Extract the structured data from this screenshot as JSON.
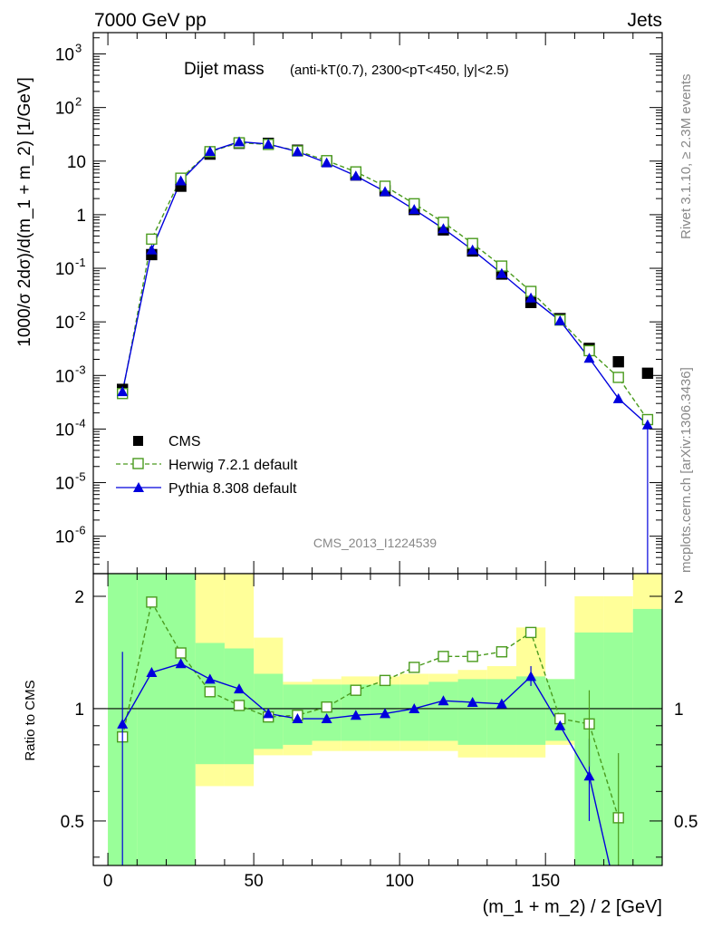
{
  "header": {
    "left": "7000 GeV pp",
    "right": "Jets"
  },
  "side_text": {
    "rivet": "Rivet 3.1.10, ≥ 2.3M events",
    "mcplots": "mcplots.cern.ch [arXiv:1306.3436]"
  },
  "chart_data": {
    "type": "scatter",
    "title_main": "Dijet mass",
    "title_sub": "(anti-kT(0.7), 2300<pT<450, |y|<2.5)",
    "watermark": "CMS_2013_I1224539",
    "xlabel": "(m_1 + m_2) / 2 [GeV]",
    "ylabel_top": "1000/σ 2dσ)/d(m_1 + m_2) [1/GeV]",
    "ylabel_bottom": "Ratio to CMS",
    "xlim": [
      -5,
      190
    ],
    "ylim_top": [
      2e-07,
      2500
    ],
    "ylim_bottom": [
      0.38,
      2.3
    ],
    "yscale_top": "log",
    "yscale_bottom": "log",
    "x_ticks": [
      0,
      50,
      100,
      150
    ],
    "y_ticks_top": [
      "10^-6",
      "10^-5",
      "10^-4",
      "10^-3",
      "10^-2",
      "10^-1",
      "1",
      "10",
      "10^2",
      "10^3"
    ],
    "y_ticks_bottom": [
      "0.5",
      "1",
      "2"
    ],
    "legend_position": "bottom-left",
    "x": [
      5,
      15,
      25,
      35,
      45,
      55,
      65,
      75,
      85,
      95,
      105,
      115,
      125,
      135,
      145,
      155,
      165,
      175,
      185
    ],
    "series": [
      {
        "name": "CMS",
        "color": "#000000",
        "marker": "square-filled",
        "values": [
          0.00055,
          0.18,
          3.4,
          13.5,
          21.5,
          21.5,
          16.0,
          10.0,
          5.5,
          2.8,
          1.25,
          0.52,
          0.21,
          0.078,
          0.023,
          0.0115,
          0.0032,
          0.0018,
          0.0011
        ]
      },
      {
        "name": "Herwig 7.2.1 default",
        "color": "#4a9b1e",
        "marker": "square-open",
        "line": "dashed",
        "values": [
          0.00046,
          0.35,
          4.8,
          15.0,
          22.0,
          20.5,
          15.5,
          10.2,
          6.3,
          3.4,
          1.6,
          0.72,
          0.29,
          0.11,
          0.037,
          0.0108,
          0.0029,
          0.00092,
          0.00015
        ]
      },
      {
        "name": "Pythia 8.308 default",
        "color": "#0000dd",
        "marker": "triangle-filled",
        "line": "solid",
        "values": [
          0.0005,
          0.22,
          4.3,
          15.2,
          23.0,
          20.8,
          15.0,
          9.3,
          5.3,
          2.7,
          1.25,
          0.55,
          0.22,
          0.08,
          0.028,
          0.0105,
          0.0021,
          0.00037,
          0.00012
        ]
      }
    ],
    "ratio": {
      "herwig": [
        0.84,
        1.93,
        1.41,
        1.11,
        1.02,
        0.95,
        0.96,
        1.01,
        1.12,
        1.19,
        1.29,
        1.38,
        1.38,
        1.42,
        1.6,
        0.94,
        0.91,
        0.51
      ],
      "pythia": [
        0.91,
        1.25,
        1.32,
        1.2,
        1.13,
        0.97,
        0.94,
        0.94,
        0.96,
        0.97,
        1.0,
        1.05,
        1.04,
        1.03,
        1.22,
        0.9,
        0.66
      ],
      "stat_band": [
        [
          0,
          10,
          0.3,
          3.0
        ],
        [
          10,
          20,
          0.3,
          3.0
        ],
        [
          20,
          30,
          0.3,
          3.0
        ],
        [
          30,
          40,
          0.71,
          1.5
        ],
        [
          40,
          50,
          0.71,
          1.45
        ],
        [
          50,
          60,
          0.78,
          1.24
        ],
        [
          60,
          70,
          0.8,
          1.16
        ],
        [
          70,
          80,
          0.82,
          1.16
        ],
        [
          80,
          90,
          0.82,
          1.16
        ],
        [
          90,
          100,
          0.82,
          1.16
        ],
        [
          100,
          110,
          0.82,
          1.16
        ],
        [
          110,
          120,
          0.82,
          1.18
        ],
        [
          120,
          130,
          0.8,
          1.2
        ],
        [
          130,
          140,
          0.8,
          1.2
        ],
        [
          140,
          150,
          0.8,
          1.22
        ],
        [
          150,
          160,
          0.82,
          1.2
        ],
        [
          160,
          170,
          0.35,
          1.6
        ],
        [
          170,
          180,
          0.35,
          1.6
        ],
        [
          180,
          190,
          0.35,
          1.85
        ]
      ],
      "syst_band": [
        [
          0,
          10,
          0.3,
          3.0
        ],
        [
          10,
          20,
          0.59,
          3.0
        ],
        [
          20,
          30,
          0.3,
          3.0
        ],
        [
          30,
          40,
          0.62,
          2.3
        ],
        [
          40,
          50,
          0.62,
          2.3
        ],
        [
          50,
          60,
          0.75,
          1.55
        ],
        [
          60,
          70,
          0.75,
          1.18
        ],
        [
          70,
          80,
          0.77,
          1.2
        ],
        [
          80,
          90,
          0.77,
          1.22
        ],
        [
          90,
          100,
          0.77,
          1.22
        ],
        [
          100,
          110,
          0.77,
          1.24
        ],
        [
          110,
          120,
          0.77,
          1.24
        ],
        [
          120,
          130,
          0.74,
          1.27
        ],
        [
          130,
          140,
          0.74,
          1.3
        ],
        [
          140,
          150,
          0.74,
          1.65
        ],
        [
          150,
          160,
          0.8,
          1.2
        ],
        [
          160,
          170,
          0.35,
          2.0
        ],
        [
          170,
          180,
          0.35,
          2.0
        ],
        [
          180,
          190,
          0.35,
          3.0
        ]
      ]
    }
  }
}
